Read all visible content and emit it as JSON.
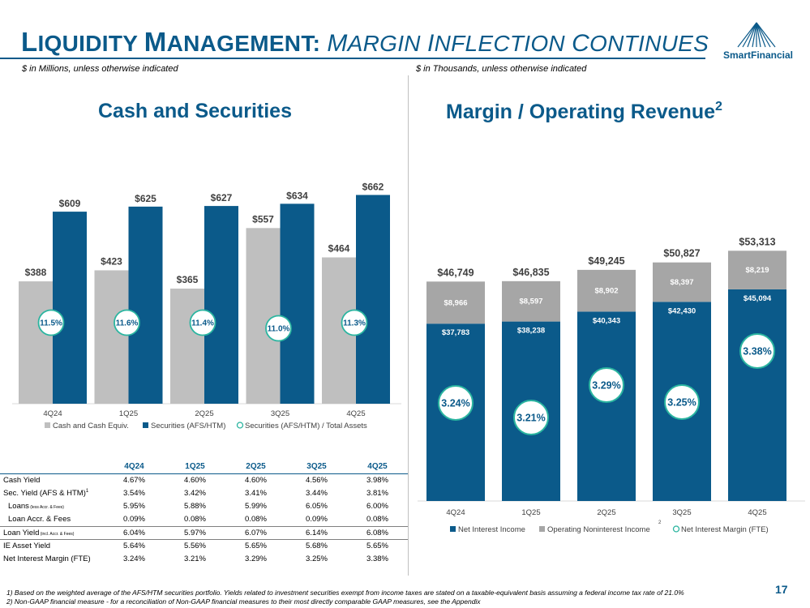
{
  "header": {
    "title_liquidity_cap": "L",
    "title_liquidity_rest": "IQUIDITY",
    "title_management_cap": "M",
    "title_management_rest": "ANAGEMENT:",
    "title_margin_cap": "M",
    "title_margin_rest": "ARGIN",
    "title_inflection_cap": "I",
    "title_inflection_rest": "NFLECTION",
    "title_continues_cap": "C",
    "title_continues_rest": "ONTINUES",
    "left_subtitle": "$ in Millions, unless otherwise indicated",
    "right_subtitle": "$ in Thousands, unless otherwise indicated",
    "logo_text": "SmartFinancial"
  },
  "left_section_title": "Cash and Securities",
  "right_section_title": "Margin / Operating Revenue",
  "right_section_title_sup": "2",
  "colors": {
    "blue": "#0b5a8a",
    "gray": "#bfbfbf",
    "darkgray": "#a6a6a6",
    "teal": "#2bb5a0"
  },
  "chart_data": [
    {
      "type": "bar",
      "title": "Cash and Securities",
      "categories": [
        "4Q24",
        "1Q25",
        "2Q25",
        "3Q25",
        "4Q25"
      ],
      "series": [
        {
          "name": "Cash and Cash Equiv.",
          "values": [
            388,
            423,
            365,
            557,
            464
          ],
          "labels": [
            "$388",
            "$423",
            "$365",
            "$557",
            "$464"
          ]
        },
        {
          "name": "Securities (AFS/HTM)",
          "values": [
            609,
            625,
            627,
            634,
            662
          ],
          "labels": [
            "$609",
            "$625",
            "$627",
            "$634",
            "$662"
          ]
        },
        {
          "name": "Securities (AFS/HTM) / Total Assets",
          "labels": [
            "11.5%",
            "11.6%",
            "11.4%",
            "11.0%",
            "11.3%"
          ]
        }
      ],
      "ylim": [
        0,
        700
      ]
    },
    {
      "type": "bar",
      "stacked": true,
      "title": "Margin / Operating Revenue",
      "categories": [
        "4Q24",
        "1Q25",
        "2Q25",
        "3Q25",
        "4Q25"
      ],
      "series": [
        {
          "name": "Net Interest Income",
          "values": [
            37783,
            38238,
            40343,
            42430,
            45094
          ],
          "labels": [
            "$37,783",
            "$38,238",
            "$40,343",
            "$42,430",
            "$45,094"
          ]
        },
        {
          "name": "Operating Noninterest Income",
          "name_sup": "2",
          "values": [
            8966,
            8597,
            8902,
            8397,
            8219
          ],
          "labels": [
            "$8,966",
            "$8,597",
            "$8,902",
            "$8,397",
            "$8,219"
          ]
        },
        {
          "name": "Net Interest Margin (FTE)",
          "labels": [
            "3.24%",
            "3.21%",
            "3.29%",
            "3.25%",
            "3.38%"
          ]
        }
      ],
      "totals": [
        "$46,749",
        "$46,835",
        "$49,245",
        "$50,827",
        "$53,313"
      ],
      "total_values": [
        46749,
        46835,
        49245,
        50827,
        53313
      ],
      "ylim": [
        0,
        56000
      ]
    }
  ],
  "table": {
    "headers": [
      "4Q24",
      "1Q25",
      "2Q25",
      "3Q25",
      "4Q25"
    ],
    "rows": [
      {
        "label": "Cash Yield",
        "values": [
          "4.67%",
          "4.60%",
          "4.60%",
          "4.56%",
          "3.98%"
        ]
      },
      {
        "label": "Sec. Yield (AFS & HTM)",
        "sup": "1",
        "values": [
          "3.54%",
          "3.42%",
          "3.41%",
          "3.44%",
          "3.81%"
        ]
      },
      {
        "label": "Loans",
        "small": "(less Accr. & Fees)",
        "indent": true,
        "values": [
          "5.95%",
          "5.88%",
          "5.99%",
          "6.05%",
          "6.00%"
        ]
      },
      {
        "label": "Loan Accr. & Fees",
        "indent": true,
        "values": [
          "0.09%",
          "0.08%",
          "0.08%",
          "0.09%",
          "0.08%"
        ]
      },
      {
        "label": "Loan Yield",
        "small": "(incl. Accr. & Fees)",
        "sep": true,
        "values": [
          "6.04%",
          "5.97%",
          "6.07%",
          "6.14%",
          "6.08%"
        ]
      },
      {
        "label": "IE Asset Yield",
        "sep": true,
        "values": [
          "5.64%",
          "5.56%",
          "5.65%",
          "5.68%",
          "5.65%"
        ]
      },
      {
        "label": "Net Interest Margin (FTE)",
        "values": [
          "3.24%",
          "3.21%",
          "3.29%",
          "3.25%",
          "3.38%"
        ]
      }
    ]
  },
  "footnotes": [
    "1)  Based on the weighted average of the AFS/HTM securities portfolio. Yields related to investment securities exempt from income taxes are stated on a taxable-equivalent basis assuming a federal income tax rate of 21.0%",
    "2)  Non-GAAP financial measure - for a reconciliation of Non-GAAP financial measures to their most directly comparable GAAP measures, see the Appendix"
  ],
  "page_number": "17"
}
